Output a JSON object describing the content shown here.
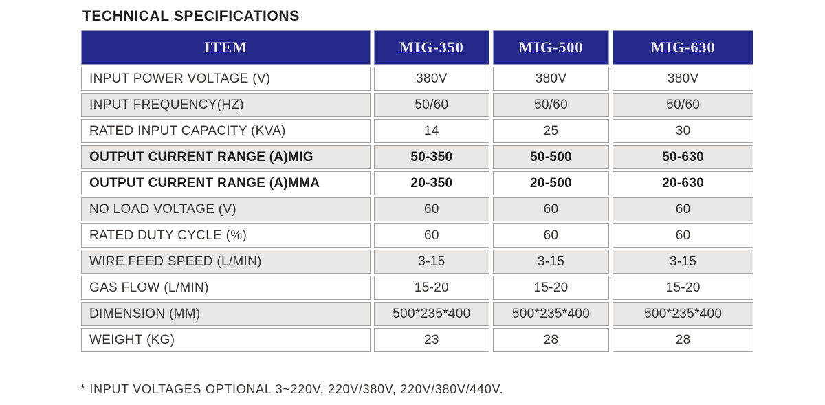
{
  "page": {
    "title": "TECHNICAL SPECIFICATIONS",
    "footnote": "* INPUT VOLTAGES OPTIONAL 3~220V, 220V/380V, 220V/380V/440V."
  },
  "table": {
    "columns": [
      "ITEM",
      "MIG-350",
      "MIG-500",
      "MIG-630"
    ],
    "rows": [
      {
        "label": "INPUT POWER VOLTAGE (V)",
        "values": [
          "380V",
          "380V",
          "380V"
        ],
        "bold": false
      },
      {
        "label": "INPUT FREQUENCY(HZ)",
        "values": [
          "50/60",
          "50/60",
          "50/60"
        ],
        "bold": false
      },
      {
        "label": "RATED INPUT CAPACITY (KVA)",
        "values": [
          "14",
          "25",
          "30"
        ],
        "bold": false
      },
      {
        "label": "OUTPUT CURRENT RANGE (A)MIG",
        "values": [
          "50-350",
          "50-500",
          "50-630"
        ],
        "bold": true
      },
      {
        "label": "OUTPUT CURRENT RANGE (A)MMA",
        "values": [
          "20-350",
          "20-500",
          "20-630"
        ],
        "bold": true
      },
      {
        "label": "NO LOAD VOLTAGE (V)",
        "values": [
          "60",
          "60",
          "60"
        ],
        "bold": false
      },
      {
        "label": "RATED DUTY CYCLE (%)",
        "values": [
          "60",
          "60",
          "60"
        ],
        "bold": false
      },
      {
        "label": "WIRE FEED SPEED (L/MIN)",
        "values": [
          "3-15",
          "3-15",
          "3-15"
        ],
        "bold": false
      },
      {
        "label": "GAS FLOW (L/MIN)",
        "values": [
          "15-20",
          "15-20",
          "15-20"
        ],
        "bold": false
      },
      {
        "label": "DIMENSION (MM)",
        "values": [
          "500*235*400",
          "500*235*400",
          "500*235*400"
        ],
        "bold": false
      },
      {
        "label": "WEIGHT (KG)",
        "values": [
          "23",
          "28",
          "28"
        ],
        "bold": false
      }
    ]
  },
  "colors": {
    "header_bg": "#24288a",
    "header_text": "#f1efec",
    "row_alt_bg": "#e9e8e6",
    "border": "#a5a3a1",
    "text": "#35322f"
  }
}
